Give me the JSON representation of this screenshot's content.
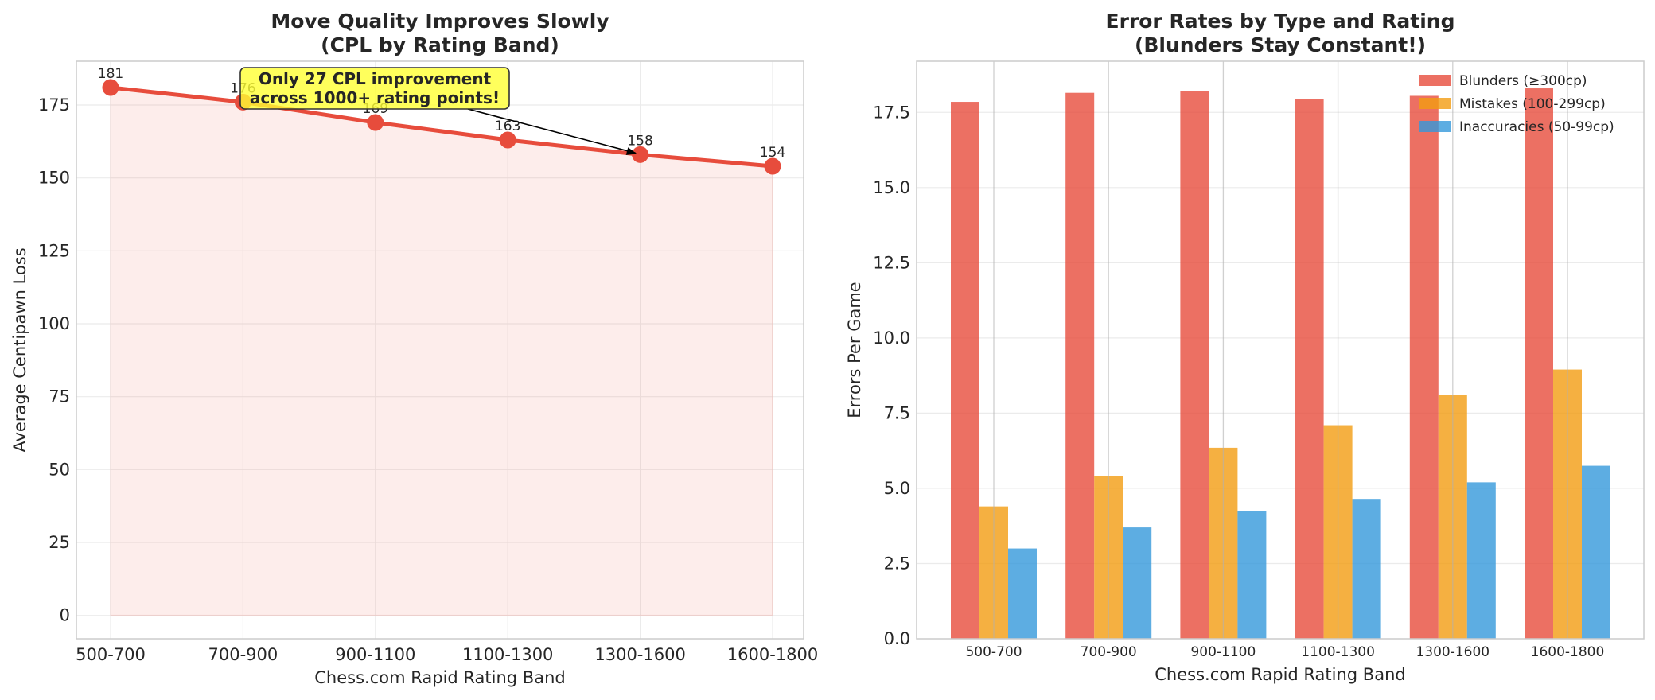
{
  "chart_data": [
    {
      "type": "line",
      "title": [
        "Move Quality Improves Slowly",
        "(CPL by Rating Band)"
      ],
      "xlabel": "Chess.com Rapid Rating Band",
      "ylabel": "Average Centipawn Loss",
      "categories": [
        "500-700",
        "700-900",
        "900-1100",
        "1100-1300",
        "1300-1600",
        "1600-1800"
      ],
      "values": [
        181,
        176,
        169,
        163,
        158,
        154
      ],
      "data_labels": [
        "181",
        "176",
        "169",
        "163",
        "158",
        "154"
      ],
      "ylim": [
        -8,
        190
      ],
      "yticks": [
        0,
        25,
        50,
        75,
        100,
        125,
        150,
        175
      ],
      "grid": true,
      "area_fill": true,
      "annotation": {
        "lines": [
          "Only 27 CPL improvement",
          "across 1000+ rating points!"
        ],
        "target_category_index": 4,
        "target_value": 158
      },
      "colors": {
        "line": "#e74c3c",
        "fill": "#e74c3c",
        "annotation_bg": "#ffff33"
      }
    },
    {
      "type": "bar",
      "title": [
        "Error Rates by Type and Rating",
        "(Blunders Stay Constant!)"
      ],
      "xlabel": "Chess.com Rapid Rating Band",
      "ylabel": "Errors Per Game",
      "categories": [
        "500-700",
        "700-900",
        "900-1100",
        "1100-1300",
        "1300-1600",
        "1600-1800"
      ],
      "series": [
        {
          "name": "Blunders (≥300cp)",
          "color": "#e74c3c",
          "values": [
            17.85,
            18.15,
            18.2,
            17.95,
            18.05,
            18.3
          ]
        },
        {
          "name": "Mistakes (100-299cp)",
          "color": "#f39c12",
          "values": [
            4.4,
            5.4,
            6.35,
            7.1,
            8.1,
            8.95
          ]
        },
        {
          "name": "Inaccuracies (50-99cp)",
          "color": "#3498db",
          "values": [
            3.0,
            3.7,
            4.25,
            4.65,
            5.2,
            5.75
          ]
        }
      ],
      "ylim": [
        0,
        19.2
      ],
      "yticks": [
        0.0,
        2.5,
        5.0,
        7.5,
        10.0,
        12.5,
        15.0,
        17.5
      ],
      "ytick_labels": [
        "0.0",
        "2.5",
        "5.0",
        "7.5",
        "10.0",
        "12.5",
        "15.0",
        "17.5"
      ],
      "grid": true,
      "legend_position": "top-right"
    }
  ]
}
